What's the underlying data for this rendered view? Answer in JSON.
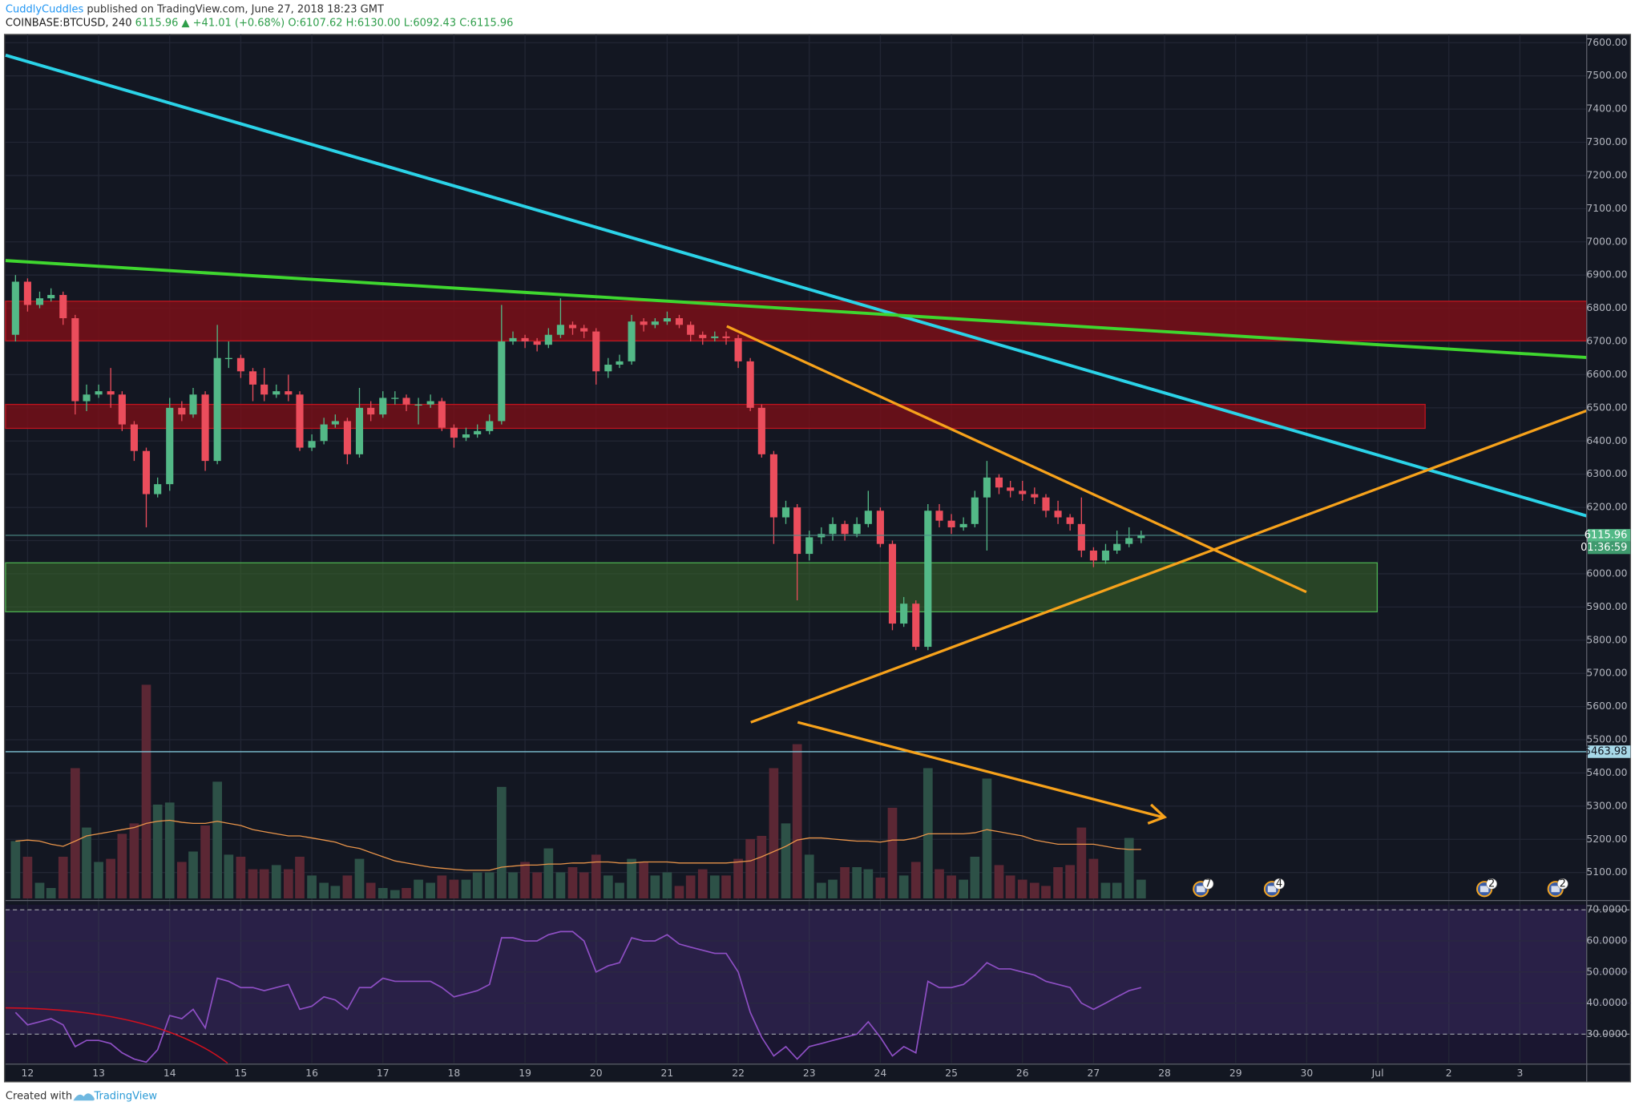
{
  "chart_data": {
    "type": "candlestick",
    "header": {
      "author": "CuddlyCuddles",
      "published": "published on TradingView.com, June 27, 2018 18:23 GMT",
      "symbol": "COINBASE:BTCUSD, 240",
      "change": "6115.96 ▲ +41.01 (+0.68%)",
      "ohlc": "O:6107.62 H:6130.00 L:6092.43 C:6115.96"
    },
    "footer": {
      "created": "Created with",
      "brand": "TradingView"
    },
    "x": [
      11.83,
      12,
      12.17,
      12.33,
      12.5,
      12.67,
      12.83,
      13,
      13.17,
      13.33,
      13.5,
      13.67,
      13.83,
      14,
      14.17,
      14.33,
      14.5,
      14.67,
      14.83,
      15,
      15.17,
      15.33,
      15.5,
      15.67,
      15.83,
      16,
      16.17,
      16.33,
      16.5,
      16.67,
      16.83,
      17,
      17.17,
      17.33,
      17.5,
      17.67,
      17.83,
      18,
      18.17,
      18.33,
      18.5,
      18.67,
      18.83,
      19,
      19.17,
      19.33,
      19.5,
      19.67,
      19.83,
      20,
      20.17,
      20.33,
      20.5,
      20.67,
      20.83,
      21,
      21.17,
      21.33,
      21.5,
      21.67,
      21.83,
      22,
      22.17,
      22.33,
      22.5,
      22.67,
      22.83,
      23,
      23.17,
      23.33,
      23.5,
      23.67,
      23.83,
      24,
      24.17,
      24.33,
      24.5,
      24.67,
      24.83,
      25,
      25.17,
      25.33,
      25.5,
      25.67,
      25.83,
      26,
      26.17,
      26.33,
      26.5,
      26.67,
      26.83,
      27,
      27.17,
      27.33,
      27.5,
      27.67
    ],
    "open": [
      6720,
      6880,
      6810,
      6830,
      6840,
      6770,
      6520,
      6540,
      6550,
      6540,
      6450,
      6370,
      6240,
      6270,
      6500,
      6480,
      6540,
      6340,
      6650,
      6650,
      6610,
      6570,
      6540,
      6550,
      6540,
      6380,
      6400,
      6450,
      6460,
      6360,
      6500,
      6480,
      6530,
      6530,
      6510,
      6510,
      6520,
      6440,
      6410,
      6420,
      6430,
      6460,
      6700,
      6710,
      6700,
      6690,
      6720,
      6750,
      6740,
      6730,
      6610,
      6630,
      6640,
      6760,
      6750,
      6760,
      6770,
      6750,
      6720,
      6710,
      6715,
      6710,
      6640,
      6500,
      6360,
      6170,
      6200,
      6060,
      6110,
      6120,
      6150,
      6120,
      6150,
      6190,
      6090,
      5850,
      5910,
      5780,
      6190,
      6160,
      6140,
      6150,
      6230,
      6290,
      6260,
      6250,
      6240,
      6230,
      6190,
      6170,
      6150,
      6070,
      6040,
      6070,
      6090,
      6107.62
    ],
    "high": [
      6900,
      6890,
      6850,
      6860,
      6850,
      6780,
      6570,
      6570,
      6620,
      6550,
      6460,
      6380,
      6290,
      6530,
      6520,
      6560,
      6550,
      6750,
      6700,
      6660,
      6620,
      6620,
      6570,
      6600,
      6550,
      6420,
      6470,
      6480,
      6470,
      6560,
      6520,
      6550,
      6550,
      6540,
      6530,
      6540,
      6530,
      6450,
      6440,
      6450,
      6480,
      6810,
      6730,
      6720,
      6710,
      6740,
      6830,
      6760,
      6750,
      6740,
      6650,
      6660,
      6780,
      6770,
      6770,
      6790,
      6780,
      6760,
      6730,
      6730,
      6730,
      6720,
      6650,
      6510,
      6370,
      6220,
      6210,
      6130,
      6140,
      6170,
      6160,
      6170,
      6250,
      6200,
      6100,
      5930,
      5920,
      6210,
      6210,
      6180,
      6170,
      6250,
      6340,
      6300,
      6280,
      6280,
      6260,
      6240,
      6220,
      6180,
      6230,
      6080,
      6090,
      6130,
      6140,
      6130
    ],
    "low": [
      6700,
      6790,
      6800,
      6820,
      6750,
      6480,
      6490,
      6530,
      6500,
      6430,
      6340,
      6140,
      6230,
      6250,
      6460,
      6470,
      6310,
      6330,
      6620,
      6590,
      6520,
      6520,
      6530,
      6520,
      6370,
      6370,
      6390,
      6440,
      6330,
      6350,
      6460,
      6470,
      6510,
      6490,
      6450,
      6500,
      6430,
      6380,
      6400,
      6410,
      6420,
      6450,
      6690,
      6680,
      6670,
      6680,
      6710,
      6720,
      6710,
      6570,
      6590,
      6620,
      6630,
      6730,
      6740,
      6750,
      6740,
      6700,
      6690,
      6700,
      6690,
      6620,
      6490,
      6350,
      6090,
      6150,
      5920,
      6040,
      6090,
      6100,
      6100,
      6110,
      6140,
      6080,
      5830,
      5840,
      5770,
      5770,
      6140,
      6120,
      6130,
      6140,
      6070,
      6240,
      6230,
      6220,
      6210,
      6170,
      6150,
      6130,
      6050,
      6020,
      6030,
      6060,
      6080,
      6092.43
    ],
    "close": [
      6880,
      6810,
      6830,
      6840,
      6770,
      6520,
      6540,
      6550,
      6540,
      6450,
      6370,
      6240,
      6270,
      6500,
      6480,
      6540,
      6340,
      6650,
      6650,
      6610,
      6570,
      6540,
      6550,
      6540,
      6380,
      6400,
      6450,
      6460,
      6360,
      6500,
      6480,
      6530,
      6530,
      6510,
      6510,
      6520,
      6440,
      6410,
      6420,
      6430,
      6460,
      6700,
      6710,
      6700,
      6690,
      6720,
      6750,
      6740,
      6730,
      6610,
      6630,
      6640,
      6760,
      6750,
      6760,
      6770,
      6750,
      6720,
      6710,
      6715,
      6710,
      6640,
      6500,
      6360,
      6170,
      6200,
      6060,
      6110,
      6120,
      6150,
      6120,
      6150,
      6190,
      6090,
      5850,
      5910,
      5780,
      6190,
      6160,
      6140,
      6150,
      6230,
      6290,
      6260,
      6250,
      6240,
      6230,
      6190,
      6170,
      6150,
      6070,
      6040,
      6070,
      6090,
      6107.62,
      6115.96
    ],
    "volume": [
      55,
      40,
      15,
      10,
      40,
      125,
      68,
      35,
      38,
      62,
      72,
      205,
      90,
      92,
      35,
      45,
      70,
      112,
      42,
      40,
      28,
      28,
      32,
      28,
      40,
      22,
      15,
      12,
      22,
      38,
      15,
      10,
      8,
      10,
      18,
      15,
      22,
      18,
      18,
      25,
      25,
      107,
      25,
      35,
      25,
      48,
      25,
      30,
      25,
      42,
      22,
      15,
      38,
      35,
      22,
      25,
      12,
      22,
      28,
      22,
      22,
      38,
      57,
      60,
      125,
      72,
      148,
      42,
      15,
      18,
      30,
      30,
      28,
      20,
      87,
      22,
      35,
      125,
      28,
      22,
      18,
      40,
      115,
      32,
      22,
      18,
      15,
      12,
      30,
      32,
      68,
      38,
      15,
      15,
      58,
      18
    ],
    "volume_ma": [
      55,
      56,
      55,
      52,
      50,
      55,
      60,
      62,
      64,
      66,
      68,
      72,
      74,
      75,
      73,
      72,
      72,
      74,
      72,
      70,
      66,
      64,
      62,
      60,
      60,
      58,
      56,
      54,
      50,
      48,
      44,
      40,
      36,
      34,
      32,
      30,
      29,
      28,
      27,
      27,
      27,
      30,
      31,
      32,
      32,
      33,
      33,
      34,
      34,
      35,
      35,
      34,
      34,
      35,
      35,
      35,
      34,
      34,
      34,
      34,
      34,
      35,
      36,
      40,
      45,
      50,
      56,
      58,
      58,
      57,
      56,
      55,
      55,
      54,
      56,
      56,
      58,
      62,
      62,
      62,
      62,
      63,
      66,
      64,
      62,
      60,
      56,
      54,
      52,
      52,
      52,
      52,
      50,
      48,
      47,
      47
    ],
    "rsi": [
      37,
      33,
      34,
      35,
      33,
      26,
      28,
      28,
      27,
      24,
      22,
      21,
      25,
      36,
      35,
      38,
      32,
      48,
      47,
      45,
      45,
      44,
      45,
      46,
      38,
      39,
      42,
      41,
      38,
      45,
      45,
      48,
      47,
      47,
      47,
      47,
      45,
      42,
      43,
      44,
      46,
      61,
      61,
      60,
      60,
      62,
      63,
      63,
      60,
      50,
      52,
      53,
      61,
      60,
      60,
      62,
      59,
      58,
      57,
      56,
      56,
      50,
      37,
      29,
      23,
      26,
      22,
      26,
      27,
      28,
      29,
      30,
      34,
      29,
      23,
      26,
      24,
      47,
      45,
      45,
      46,
      49,
      53,
      51,
      51,
      50,
      49,
      47,
      46,
      45,
      40,
      38,
      40,
      42,
      44,
      45
    ],
    "xlim": [
      11.69,
      33.94
    ],
    "xticks": [
      12,
      13,
      14,
      15,
      16,
      17,
      18,
      19,
      20,
      21,
      22,
      23,
      24,
      25,
      26,
      27,
      28,
      29,
      30,
      {
        "value": 31,
        "label": "Jul"
      },
      {
        "value": 32,
        "label": "2"
      },
      {
        "value": 33,
        "label": "3"
      }
    ],
    "ylim": [
      5022,
      7625
    ],
    "yticks": [
      {
        "value": 5100,
        "label": "5100.00"
      },
      {
        "value": 5200,
        "label": "5200.00"
      },
      {
        "value": 5300,
        "label": "5300.00"
      },
      {
        "value": 5400,
        "label": "5400.00"
      },
      {
        "value": 5500,
        "label": "5500.00"
      },
      {
        "value": 5600,
        "label": "5600.00"
      },
      {
        "value": 5700,
        "label": "5700.00"
      },
      {
        "value": 5800,
        "label": "5800.00"
      },
      {
        "value": 5900,
        "label": "5900.00"
      },
      {
        "value": 6000,
        "label": "6000.00"
      },
      {
        "value": 6100,
        "label": "6100.00"
      },
      {
        "value": 6200,
        "label": "6200.00"
      },
      {
        "value": 6300,
        "label": "6300.00"
      },
      {
        "value": 6400,
        "label": "6400.00"
      },
      {
        "value": 6500,
        "label": "6500.00"
      },
      {
        "value": 6600,
        "label": "6600.00"
      },
      {
        "value": 6700,
        "label": "6700.00"
      },
      {
        "value": 6800,
        "label": "6800.00"
      },
      {
        "value": 6900,
        "label": "6900.00"
      },
      {
        "value": 7000,
        "label": "7000.00"
      },
      {
        "value": 7100,
        "label": "7100.00"
      },
      {
        "value": 7200,
        "label": "7200.00"
      },
      {
        "value": 7300,
        "label": "7300.00"
      },
      {
        "value": 7400,
        "label": "7400.00"
      },
      {
        "value": 7500,
        "label": "7500.00"
      },
      {
        "value": 7600,
        "label": "7600.00"
      }
    ],
    "volume_ylim": [
      0,
      220
    ],
    "rsi_ylim": [
      20.7,
      73
    ],
    "rsi_yticks": [
      {
        "value": 70,
        "label": "70.0000"
      },
      {
        "value": 60,
        "label": "60.0000"
      },
      {
        "value": 50,
        "label": "50.0000"
      },
      {
        "value": 40,
        "label": "40.0000"
      },
      {
        "value": 30,
        "label": "30.0000"
      }
    ],
    "last_price": 6115.96,
    "countdown": "01:36:59",
    "alert_price": 5463.98,
    "events": [
      {
        "x": 28.51,
        "count": 7
      },
      {
        "x": 29.51,
        "count": 4
      },
      {
        "x": 32.5,
        "count": 2
      },
      {
        "x": 33.5,
        "count": 2
      }
    ],
    "grid": true,
    "up_color": "#53b987",
    "down_color": "#eb4d5c",
    "volume_up_color": "#2d5147",
    "volume_down_color": "#5b2734",
    "volume_ma_color": "#e8944a",
    "rsi_color": "#8e4fc4"
  }
}
